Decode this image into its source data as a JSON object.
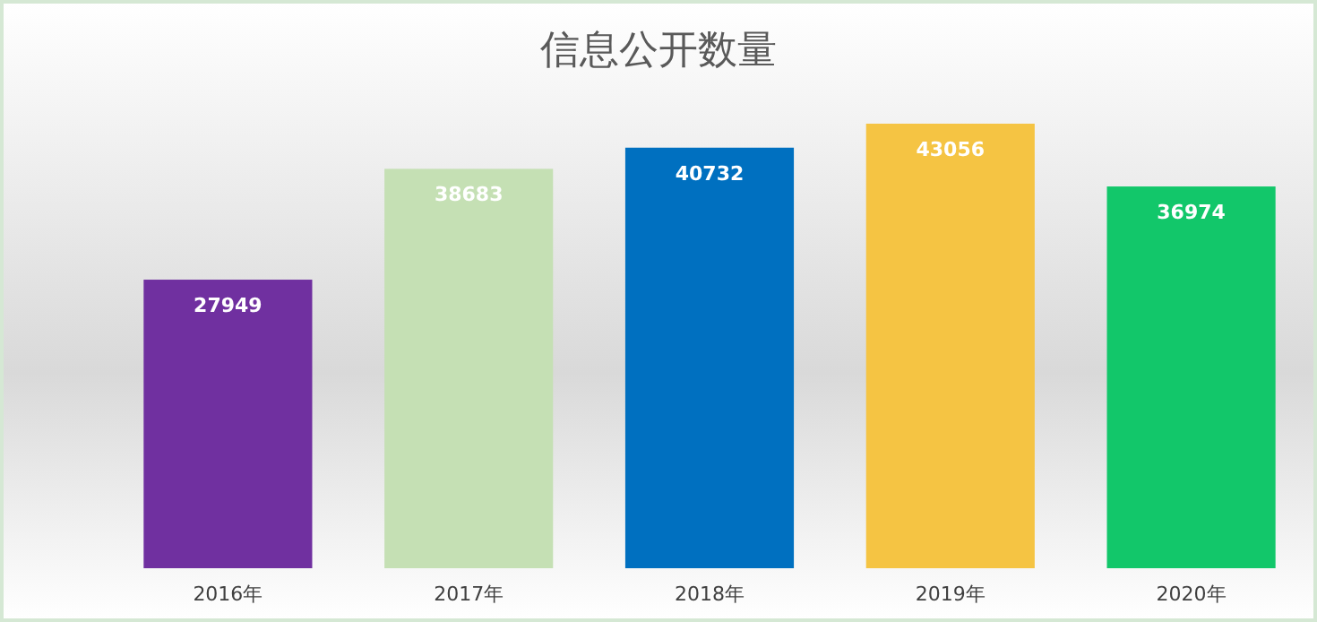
{
  "chart_data": {
    "type": "bar",
    "title": "信息公开数量",
    "categories": [
      "2016年",
      "2017年",
      "2018年",
      "2019年",
      "2020年"
    ],
    "values": [
      27949,
      38683,
      40732,
      43056,
      36974
    ],
    "colors": [
      "#7030a0",
      "#c5e0b4",
      "#0070c0",
      "#f5c443",
      "#12c76a"
    ],
    "data_labels": true
  }
}
